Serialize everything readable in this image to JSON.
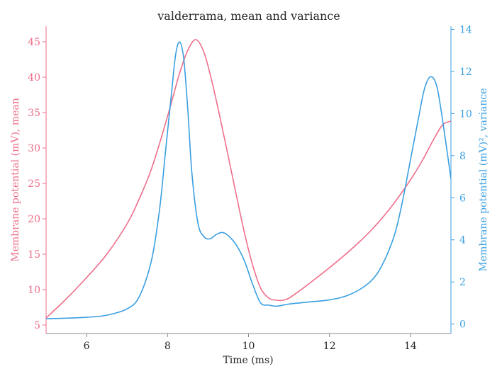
{
  "chart_data": {
    "type": "line",
    "title": "valderrama, mean and variance",
    "xlabel": "Time (ms)",
    "ylabel_left": "Membrane potential (mV), mean",
    "ylabel_right": "Membrane potential (mV)², variance",
    "xlim": [
      5,
      15
    ],
    "ylim_left": [
      3.8,
      47.2
    ],
    "ylim_right": [
      -0.45,
      14.15
    ],
    "x_ticks": [
      6,
      8,
      10,
      12,
      14
    ],
    "y_left_ticks": [
      5,
      10,
      15,
      20,
      25,
      30,
      35,
      40,
      45
    ],
    "y_right_ticks": [
      0,
      2,
      4,
      6,
      8,
      10,
      12,
      14
    ],
    "grid": false,
    "colors": {
      "mean": "#ee6e8a",
      "variance": "#3a9fe0",
      "axis": "#888888",
      "text": "#262626"
    },
    "series": [
      {
        "axis": "left",
        "role": "mean",
        "x": [
          5.0,
          5.5,
          6.0,
          6.5,
          7.0,
          7.3,
          7.6,
          7.9,
          8.1,
          8.3,
          8.5,
          8.7,
          8.9,
          9.1,
          9.3,
          9.5,
          9.7,
          9.9,
          10.1,
          10.3,
          10.5,
          10.7,
          10.85,
          11.0,
          11.3,
          11.6,
          12.0,
          12.5,
          13.0,
          13.5,
          14.0,
          14.3,
          14.6,
          14.8,
          15.0
        ],
        "y": [
          6.0,
          8.7,
          11.7,
          15.0,
          19.3,
          22.8,
          27.0,
          32.5,
          36.5,
          40.6,
          43.8,
          45.3,
          43.5,
          39.3,
          34.2,
          28.8,
          23.3,
          18.0,
          13.5,
          10.2,
          8.8,
          8.5,
          8.5,
          8.8,
          10.0,
          11.3,
          13.1,
          15.5,
          18.2,
          21.5,
          25.5,
          28.3,
          31.5,
          33.3,
          33.8
        ]
      },
      {
        "axis": "right",
        "role": "variance",
        "x": [
          5.0,
          5.5,
          6.0,
          6.5,
          7.0,
          7.3,
          7.6,
          7.8,
          7.95,
          8.1,
          8.2,
          8.3,
          8.4,
          8.5,
          8.6,
          8.75,
          8.9,
          9.05,
          9.2,
          9.35,
          9.5,
          9.7,
          9.9,
          10.1,
          10.3,
          10.5,
          10.7,
          11.0,
          11.5,
          12.0,
          12.5,
          13.0,
          13.3,
          13.6,
          13.8,
          14.0,
          14.2,
          14.35,
          14.5,
          14.65,
          14.8,
          15.0
        ],
        "y": [
          0.25,
          0.28,
          0.32,
          0.42,
          0.72,
          1.3,
          3.0,
          5.4,
          8.2,
          11.0,
          12.8,
          13.4,
          12.6,
          10.2,
          7.2,
          4.8,
          4.15,
          4.05,
          4.25,
          4.35,
          4.2,
          3.75,
          3.0,
          1.9,
          1.0,
          0.9,
          0.85,
          0.95,
          1.05,
          1.15,
          1.4,
          2.0,
          2.8,
          4.2,
          5.8,
          7.8,
          9.8,
          11.2,
          11.75,
          11.3,
          9.6,
          6.9
        ]
      }
    ]
  }
}
